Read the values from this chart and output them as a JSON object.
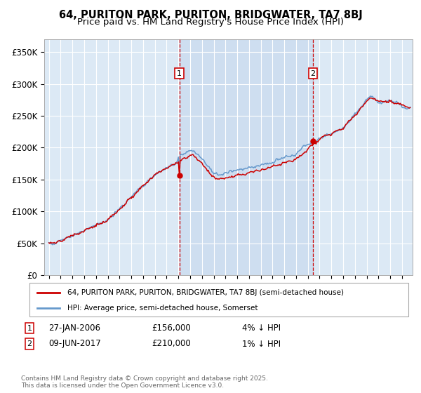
{
  "title": "64, PURITON PARK, PURITON, BRIDGWATER, TA7 8BJ",
  "subtitle": "Price paid vs. HM Land Registry's House Price Index (HPI)",
  "ylim": [
    0,
    370000
  ],
  "yticks": [
    0,
    50000,
    100000,
    150000,
    200000,
    250000,
    300000,
    350000
  ],
  "ytick_labels": [
    "£0",
    "£50K",
    "£100K",
    "£150K",
    "£200K",
    "£250K",
    "£300K",
    "£350K"
  ],
  "background_color": "#dce9f5",
  "fig_bg_color": "#ffffff",
  "legend_label_red": "64, PURITON PARK, PURITON, BRIDGWATER, TA7 8BJ (semi-detached house)",
  "legend_label_blue": "HPI: Average price, semi-detached house, Somerset",
  "event1_date": "27-JAN-2006",
  "event1_price": "£156,000",
  "event1_hpi": "4% ↓ HPI",
  "event2_date": "09-JUN-2017",
  "event2_price": "£210,000",
  "event2_hpi": "1% ↓ HPI",
  "footer": "Contains HM Land Registry data © Crown copyright and database right 2025.\nThis data is licensed under the Open Government Licence v3.0.",
  "red_color": "#cc0000",
  "blue_color": "#6699cc",
  "highlight_color": "#c5d8ee",
  "grid_color": "#ffffff",
  "event1_x": 2006.08,
  "event2_x": 2017.44,
  "xmin": 1994.6,
  "xmax": 2025.9
}
